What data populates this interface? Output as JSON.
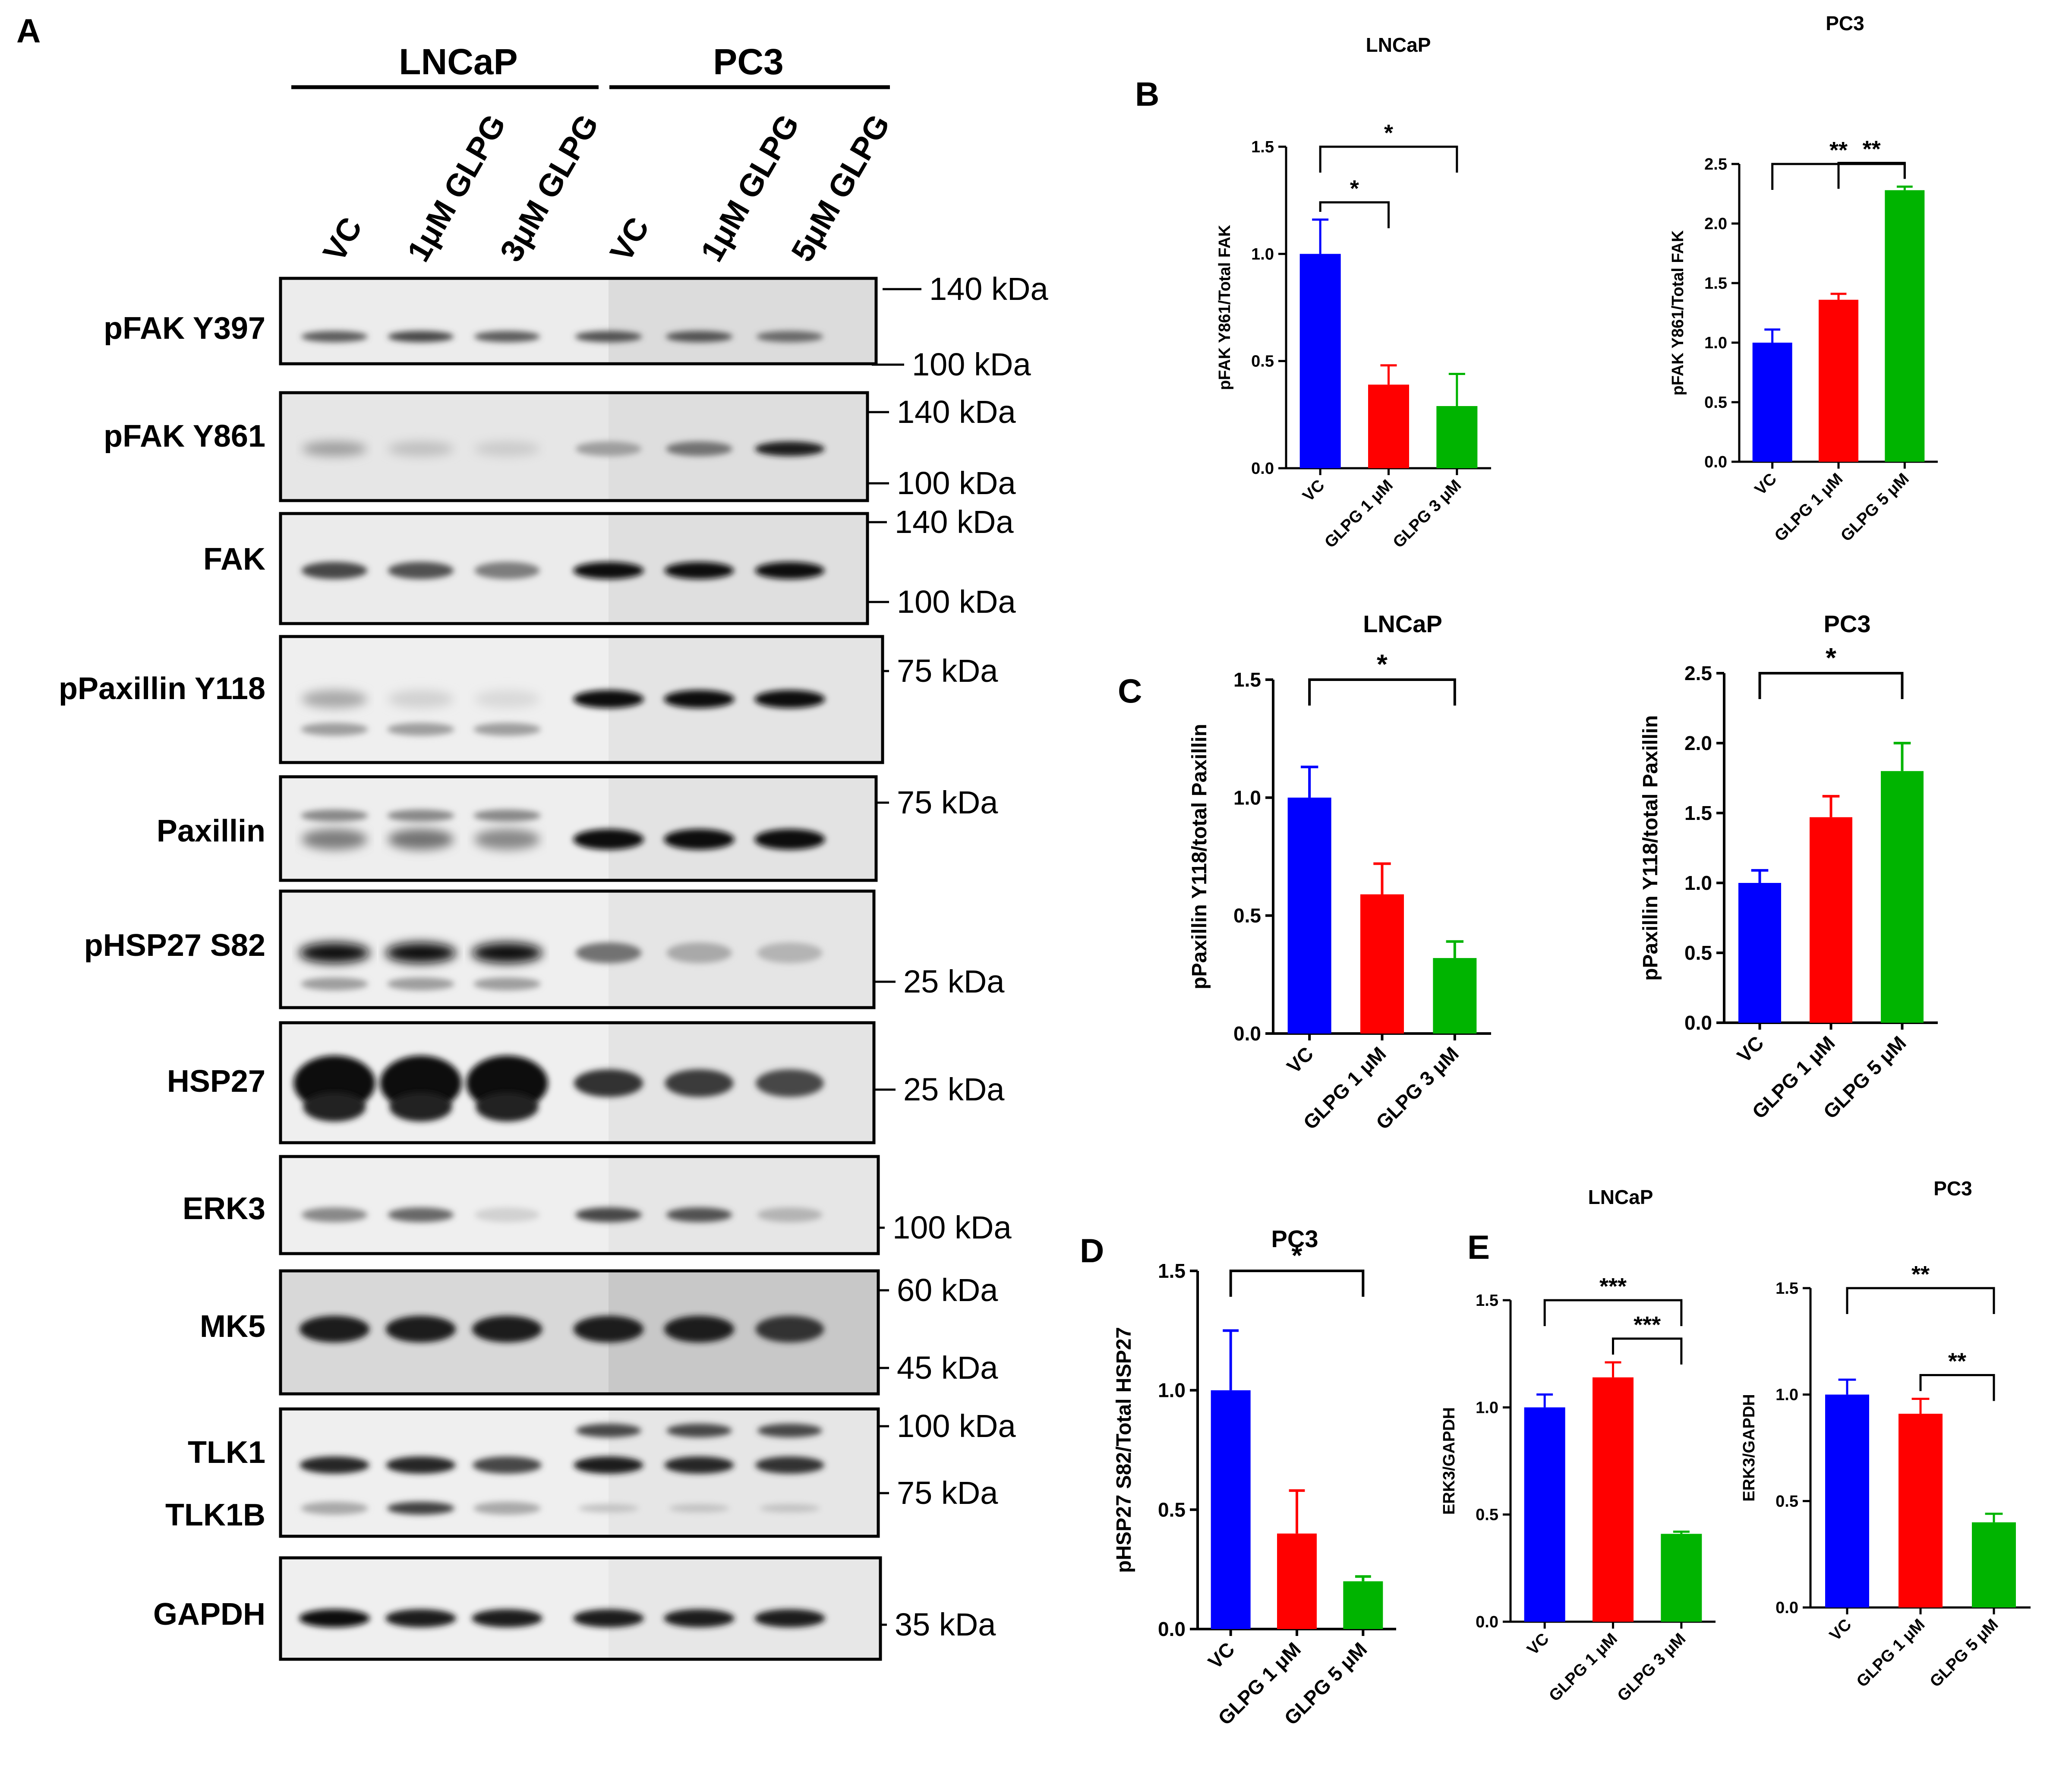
{
  "blot": {
    "panel_label": "A",
    "cell_lines": [
      "LNCaP",
      "PC3"
    ],
    "lanes": [
      "VC",
      "1μM GLPG",
      "3μM GLPG",
      "VC",
      "1μM GLPG",
      "5μM GLPG"
    ],
    "rows": [
      {
        "label": "pFAK Y397",
        "markers": [
          "140 kDa",
          "100 kDa"
        ]
      },
      {
        "label": "pFAK Y861",
        "markers": [
          "140 kDa",
          "100 kDa"
        ]
      },
      {
        "label": "FAK",
        "markers": [
          "140 kDa",
          "100 kDa"
        ]
      },
      {
        "label": "pPaxillin Y118",
        "markers": [
          "75 kDa"
        ]
      },
      {
        "label": "Paxillin",
        "markers": [
          "75 kDa"
        ]
      },
      {
        "label": "pHSP27 S82",
        "markers": [
          "25 kDa"
        ]
      },
      {
        "label": "HSP27",
        "markers": [
          "25 kDa"
        ]
      },
      {
        "label": "ERK3",
        "markers": [
          "100 kDa"
        ]
      },
      {
        "label": "MK5",
        "markers": [
          "60 kDa",
          "45 kDa"
        ]
      },
      {
        "label": "TLK1",
        "label2": "TLK1B",
        "markers": [
          "100 kDa",
          "75 kDa"
        ]
      },
      {
        "label": "GAPDH",
        "markers": [
          "35 kDa"
        ]
      }
    ]
  },
  "panel_letters": {
    "B": "B",
    "C": "C",
    "D": "D",
    "E": "E"
  },
  "colors": {
    "VC": "#0000ff",
    "dose1": "#ff0000",
    "dose2": "#00b400"
  },
  "chart_data": [
    {
      "id": "B1",
      "panel": "B",
      "type": "bar",
      "title": "LNCaP",
      "ylabel": "pFAK Y861/Total FAK",
      "categories": [
        "VC",
        "GLPG 1 μM",
        "GLPG 3 μM"
      ],
      "values": [
        1.0,
        0.39,
        0.29
      ],
      "errors": [
        0.16,
        0.09,
        0.15
      ],
      "ylim": [
        0,
        1.5
      ],
      "yticks": [
        "0.0",
        "0.5",
        "1.0",
        "1.5"
      ],
      "significance": [
        {
          "from": "VC",
          "to": "GLPG 1 μM",
          "label": "*"
        },
        {
          "from": "VC",
          "to": "GLPG 3 μM",
          "label": "*"
        }
      ]
    },
    {
      "id": "B2",
      "panel": "B",
      "type": "bar",
      "title": "PC3",
      "ylabel": "pFAK Y861/Total FAK",
      "categories": [
        "VC",
        "GLPG 1 μM",
        "GLPG 5 μM"
      ],
      "values": [
        1.0,
        1.36,
        2.28
      ],
      "errors": [
        0.11,
        0.05,
        0.03
      ],
      "ylim": [
        0,
        2.5
      ],
      "yticks": [
        "0.0",
        "0.5",
        "1.0",
        "1.5",
        "2.0",
        "2.5"
      ],
      "significance": [
        {
          "from": "VC",
          "to": "GLPG 5 μM",
          "label": "**"
        },
        {
          "from": "GLPG 1 μM",
          "to": "GLPG 5 μM",
          "label": "**"
        }
      ]
    },
    {
      "id": "C1",
      "panel": "C",
      "type": "bar",
      "title": "LNCaP",
      "ylabel": "pPaxillin Y118/total Paxillin",
      "categories": [
        "VC",
        "GLPG 1 μM",
        "GLPG 3 μM"
      ],
      "values": [
        1.0,
        0.59,
        0.32
      ],
      "errors": [
        0.13,
        0.13,
        0.07
      ],
      "ylim": [
        0,
        1.5
      ],
      "yticks": [
        "0.0",
        "0.5",
        "1.0",
        "1.5"
      ],
      "significance": [
        {
          "from": "VC",
          "to": "GLPG 3 μM",
          "label": "*"
        }
      ]
    },
    {
      "id": "C2",
      "panel": "C",
      "type": "bar",
      "title": "PC3",
      "ylabel": "pPaxillin Y118/total Paxillin",
      "categories": [
        "VC",
        "GLPG 1 μM",
        "GLPG 5 μM"
      ],
      "values": [
        1.0,
        1.47,
        1.8
      ],
      "errors": [
        0.09,
        0.15,
        0.2
      ],
      "ylim": [
        0,
        2.5
      ],
      "yticks": [
        "0.0",
        "0.5",
        "1.0",
        "1.5",
        "2.0",
        "2.5"
      ],
      "significance": [
        {
          "from": "VC",
          "to": "GLPG 5 μM",
          "label": "*"
        }
      ]
    },
    {
      "id": "D1",
      "panel": "D",
      "type": "bar",
      "title": "PC3",
      "ylabel": "pHSP27 S82/Total HSP27",
      "categories": [
        "VC",
        "GLPG 1 μM",
        "GLPG 5 μM"
      ],
      "values": [
        1.0,
        0.4,
        0.2
      ],
      "errors": [
        0.25,
        0.18,
        0.02
      ],
      "ylim": [
        0,
        1.5
      ],
      "yticks": [
        "0.0",
        "0.5",
        "1.0",
        "1.5"
      ],
      "significance": [
        {
          "from": "VC",
          "to": "GLPG 5 μM",
          "label": "*"
        }
      ]
    },
    {
      "id": "E1",
      "panel": "E",
      "type": "bar",
      "title": "LNCaP",
      "ylabel": "ERK3/GAPDH",
      "categories": [
        "VC",
        "GLPG 1 μM",
        "GLPG 3 μM"
      ],
      "values": [
        1.0,
        1.14,
        0.41
      ],
      "errors": [
        0.06,
        0.07,
        0.01
      ],
      "ylim": [
        0,
        1.5
      ],
      "yticks": [
        "0.0",
        "0.5",
        "1.0",
        "1.5"
      ],
      "significance": [
        {
          "from": "VC",
          "to": "GLPG 3 μM",
          "label": "***"
        },
        {
          "from": "GLPG 1 μM",
          "to": "GLPG 3 μM",
          "label": "***"
        }
      ]
    },
    {
      "id": "E2",
      "panel": "E",
      "type": "bar",
      "title": "PC3",
      "ylabel": "ERK3/GAPDH",
      "categories": [
        "VC",
        "GLPG 1 μM",
        "GLPG 5 μM"
      ],
      "values": [
        1.0,
        0.91,
        0.4
      ],
      "errors": [
        0.07,
        0.07,
        0.04
      ],
      "ylim": [
        0,
        1.5
      ],
      "yticks": [
        "0.0",
        "0.5",
        "1.0",
        "1.5"
      ],
      "significance": [
        {
          "from": "VC",
          "to": "GLPG 5 μM",
          "label": "**"
        },
        {
          "from": "GLPG 1 μM",
          "to": "GLPG 5 μM",
          "label": "**"
        }
      ]
    }
  ]
}
